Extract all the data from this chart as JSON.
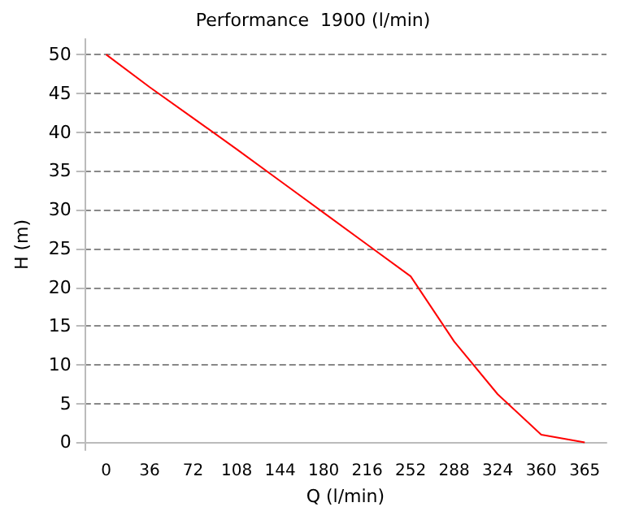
{
  "chart_data": {
    "type": "line",
    "title": "Performance  1900 (l/min)",
    "xlabel": "Q (l/min)",
    "ylabel": "H (m)",
    "categories": [
      "0",
      "36",
      "72",
      "108",
      "144",
      "180",
      "216",
      "252",
      "288",
      "324",
      "360",
      "365"
    ],
    "series": [
      {
        "color": "#ff0000",
        "values": [
          50,
          45.8,
          41.8,
          37.8,
          33.7,
          29.6,
          25.5,
          21.4,
          13,
          6.2,
          1,
          0
        ]
      }
    ],
    "ylim": [
      -1,
      52
    ],
    "yticks": [
      0,
      5,
      10,
      15,
      20,
      25,
      30,
      35,
      40,
      45,
      50
    ],
    "grid": "y"
  }
}
